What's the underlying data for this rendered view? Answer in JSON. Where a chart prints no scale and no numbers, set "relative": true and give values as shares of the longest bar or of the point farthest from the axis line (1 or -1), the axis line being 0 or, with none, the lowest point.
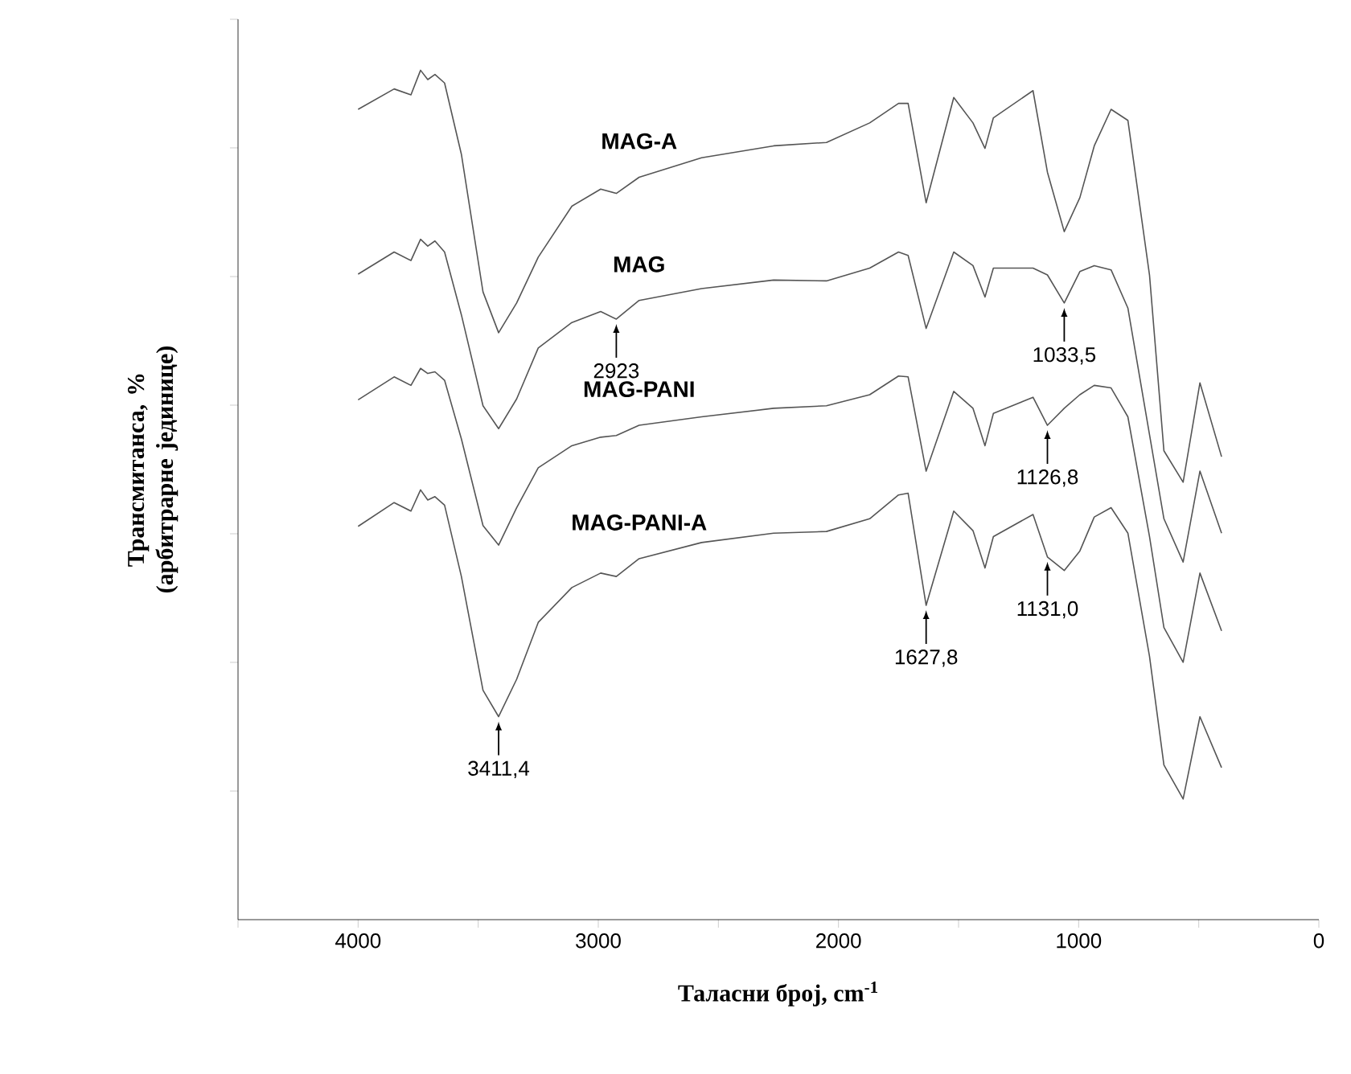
{
  "chart_data": {
    "type": "line",
    "relative": true,
    "xlabel": "Таласни број, cm$^{-1}$",
    "ylabel": "Трансмитанса, % (арбитрарне јединице)",
    "xlim": [
      4500,
      0
    ],
    "xticks": [
      {
        "value": 4500,
        "label": null
      },
      4000,
      {
        "value": 3500,
        "label": null
      },
      3000,
      {
        "value": 2500,
        "label": null
      },
      2000,
      {
        "value": 1500,
        "label": null
      },
      1000,
      {
        "value": 500,
        "label": null
      },
      0
    ],
    "x": [
      4000,
      3850,
      3780,
      3740,
      3710,
      3680,
      3640,
      3570,
      3480,
      3415,
      3340,
      3250,
      3110,
      2990,
      2925,
      2830,
      2570,
      2270,
      2050,
      1870,
      1750,
      1710,
      1635,
      1520,
      1440,
      1390,
      1355,
      1190,
      1130,
      1060,
      995,
      935,
      865,
      795,
      705,
      645,
      565,
      495,
      405
    ],
    "series": [
      {
        "name": "MAG-A",
        "color": "#555555",
        "values": [
          0.954,
          0.978,
          0.971,
          1.0,
          0.989,
          0.995,
          0.985,
          0.901,
          0.739,
          0.691,
          0.726,
          0.78,
          0.84,
          0.86,
          0.855,
          0.874,
          0.897,
          0.911,
          0.915,
          0.938,
          0.961,
          0.961,
          0.844,
          0.968,
          0.938,
          0.908,
          0.944,
          0.976,
          0.88,
          0.81,
          0.85,
          0.911,
          0.954,
          0.941,
          0.759,
          0.552,
          0.515,
          0.632,
          0.545
        ]
      },
      {
        "name": "MAG",
        "color": "#555555",
        "values": [
          0.76,
          0.786,
          0.776,
          0.801,
          0.793,
          0.799,
          0.786,
          0.712,
          0.605,
          0.578,
          0.613,
          0.673,
          0.703,
          0.716,
          0.707,
          0.729,
          0.743,
          0.753,
          0.752,
          0.767,
          0.786,
          0.782,
          0.696,
          0.786,
          0.77,
          0.733,
          0.767,
          0.767,
          0.759,
          0.726,
          0.763,
          0.77,
          0.765,
          0.72,
          0.571,
          0.472,
          0.421,
          0.528,
          0.455
        ]
      },
      {
        "name": "MAG-PANI",
        "color": "#555555",
        "values": [
          0.612,
          0.639,
          0.629,
          0.649,
          0.643,
          0.645,
          0.635,
          0.566,
          0.464,
          0.441,
          0.485,
          0.532,
          0.558,
          0.568,
          0.57,
          0.582,
          0.592,
          0.602,
          0.605,
          0.618,
          0.64,
          0.639,
          0.528,
          0.622,
          0.602,
          0.558,
          0.596,
          0.615,
          0.582,
          0.602,
          0.618,
          0.629,
          0.626,
          0.592,
          0.451,
          0.344,
          0.303,
          0.408,
          0.34
        ]
      },
      {
        "name": "MAG-PANI-A",
        "color": "#555555",
        "values": [
          0.463,
          0.491,
          0.481,
          0.506,
          0.494,
          0.498,
          0.488,
          0.404,
          0.27,
          0.239,
          0.283,
          0.35,
          0.391,
          0.408,
          0.404,
          0.425,
          0.444,
          0.455,
          0.457,
          0.472,
          0.5,
          0.502,
          0.37,
          0.481,
          0.458,
          0.414,
          0.451,
          0.477,
          0.427,
          0.411,
          0.434,
          0.474,
          0.485,
          0.455,
          0.31,
          0.182,
          0.142,
          0.239,
          0.179
        ]
      }
    ],
    "annotations": [
      {
        "text": "3411,4",
        "x": 3415,
        "y": 0.239
      },
      {
        "text": "2923",
        "x": 2925,
        "y": 0.707
      },
      {
        "text": "1033,5",
        "x": 1060,
        "y": 0.726
      },
      {
        "text": "1126,8",
        "x": 1130,
        "y": 0.582
      },
      {
        "text": "1627,8",
        "x": 1635,
        "y": 0.37
      },
      {
        "text": "1131,0",
        "x": 1130,
        "y": 0.427
      }
    ],
    "grid": false,
    "legend": false,
    "marker": "none",
    "line_style": "solid"
  }
}
